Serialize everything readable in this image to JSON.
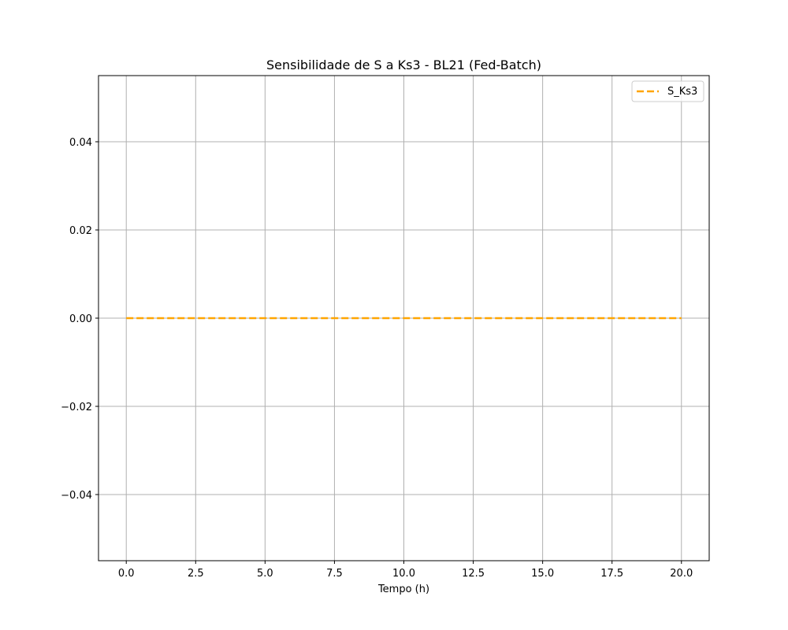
{
  "chart_data": {
    "type": "line",
    "title": "Sensibilidade de S a Ks3 - BL21 (Fed-Batch)",
    "xlabel": "Tempo (h)",
    "ylabel": "",
    "xlim": [
      -1.0,
      21.0
    ],
    "ylim": [
      -0.055,
      0.055
    ],
    "xticks": [
      0.0,
      2.5,
      5.0,
      7.5,
      10.0,
      12.5,
      15.0,
      17.5,
      20.0
    ],
    "xtick_labels": [
      "0.0",
      "2.5",
      "5.0",
      "7.5",
      "10.0",
      "12.5",
      "15.0",
      "17.5",
      "20.0"
    ],
    "yticks": [
      -0.04,
      -0.02,
      0.0,
      0.02,
      0.04
    ],
    "ytick_labels": [
      "−0.04",
      "−0.02",
      "0.00",
      "0.02",
      "0.04"
    ],
    "grid": true,
    "legend_position": "upper right",
    "series": [
      {
        "name": "S_Ks3",
        "color": "#ffa500",
        "line_style": "dashed",
        "x": [
          0.0,
          20.0
        ],
        "y": [
          0.0,
          0.0
        ]
      }
    ]
  }
}
